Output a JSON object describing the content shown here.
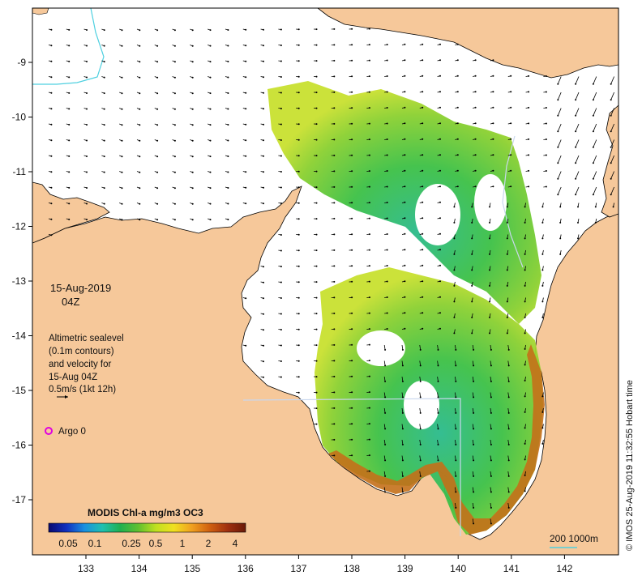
{
  "map": {
    "colors": {
      "land": "#f6c89a",
      "coast": "#000000",
      "sea": "#ffffff",
      "contour": "#4fd0e0",
      "argo": "#e000e0",
      "scalebar": "#4fd0e0"
    },
    "axes": {
      "x_ticks": [
        "133",
        "134",
        "135",
        "136",
        "137",
        "138",
        "139",
        "140",
        "141",
        "142"
      ],
      "y_ticks": [
        "-9",
        "-10",
        "-11",
        "-12",
        "-13",
        "-14",
        "-15",
        "-16",
        "-17"
      ]
    },
    "date_label": "15-Aug-2019",
    "time_label": "04Z",
    "vector_legend": {
      "lines": [
        "Altimetric sealevel",
        "(0.1m contours)",
        "and velocity for",
        "15-Aug 04Z"
      ],
      "scale_text": "0.5m/s (1kt 12h)"
    },
    "argo_label": "Argo 0",
    "colorbar": {
      "title": "MODIS Chl-a mg/m3 OC3",
      "labels": [
        "0.05",
        "0.1",
        "0.25",
        "0.5",
        "1",
        "2",
        "4"
      ],
      "stops": [
        "#0a0a70",
        "#1030c0",
        "#1a90e0",
        "#20c0b0",
        "#20b050",
        "#60c030",
        "#c0e020",
        "#f0e020",
        "#f0a020",
        "#d06010",
        "#a03010",
        "#6a1a08"
      ]
    },
    "scale_bar_text": "200  1000m",
    "credit": "© IMOS 25-Aug-2019 11:32:55 Hobart time"
  }
}
